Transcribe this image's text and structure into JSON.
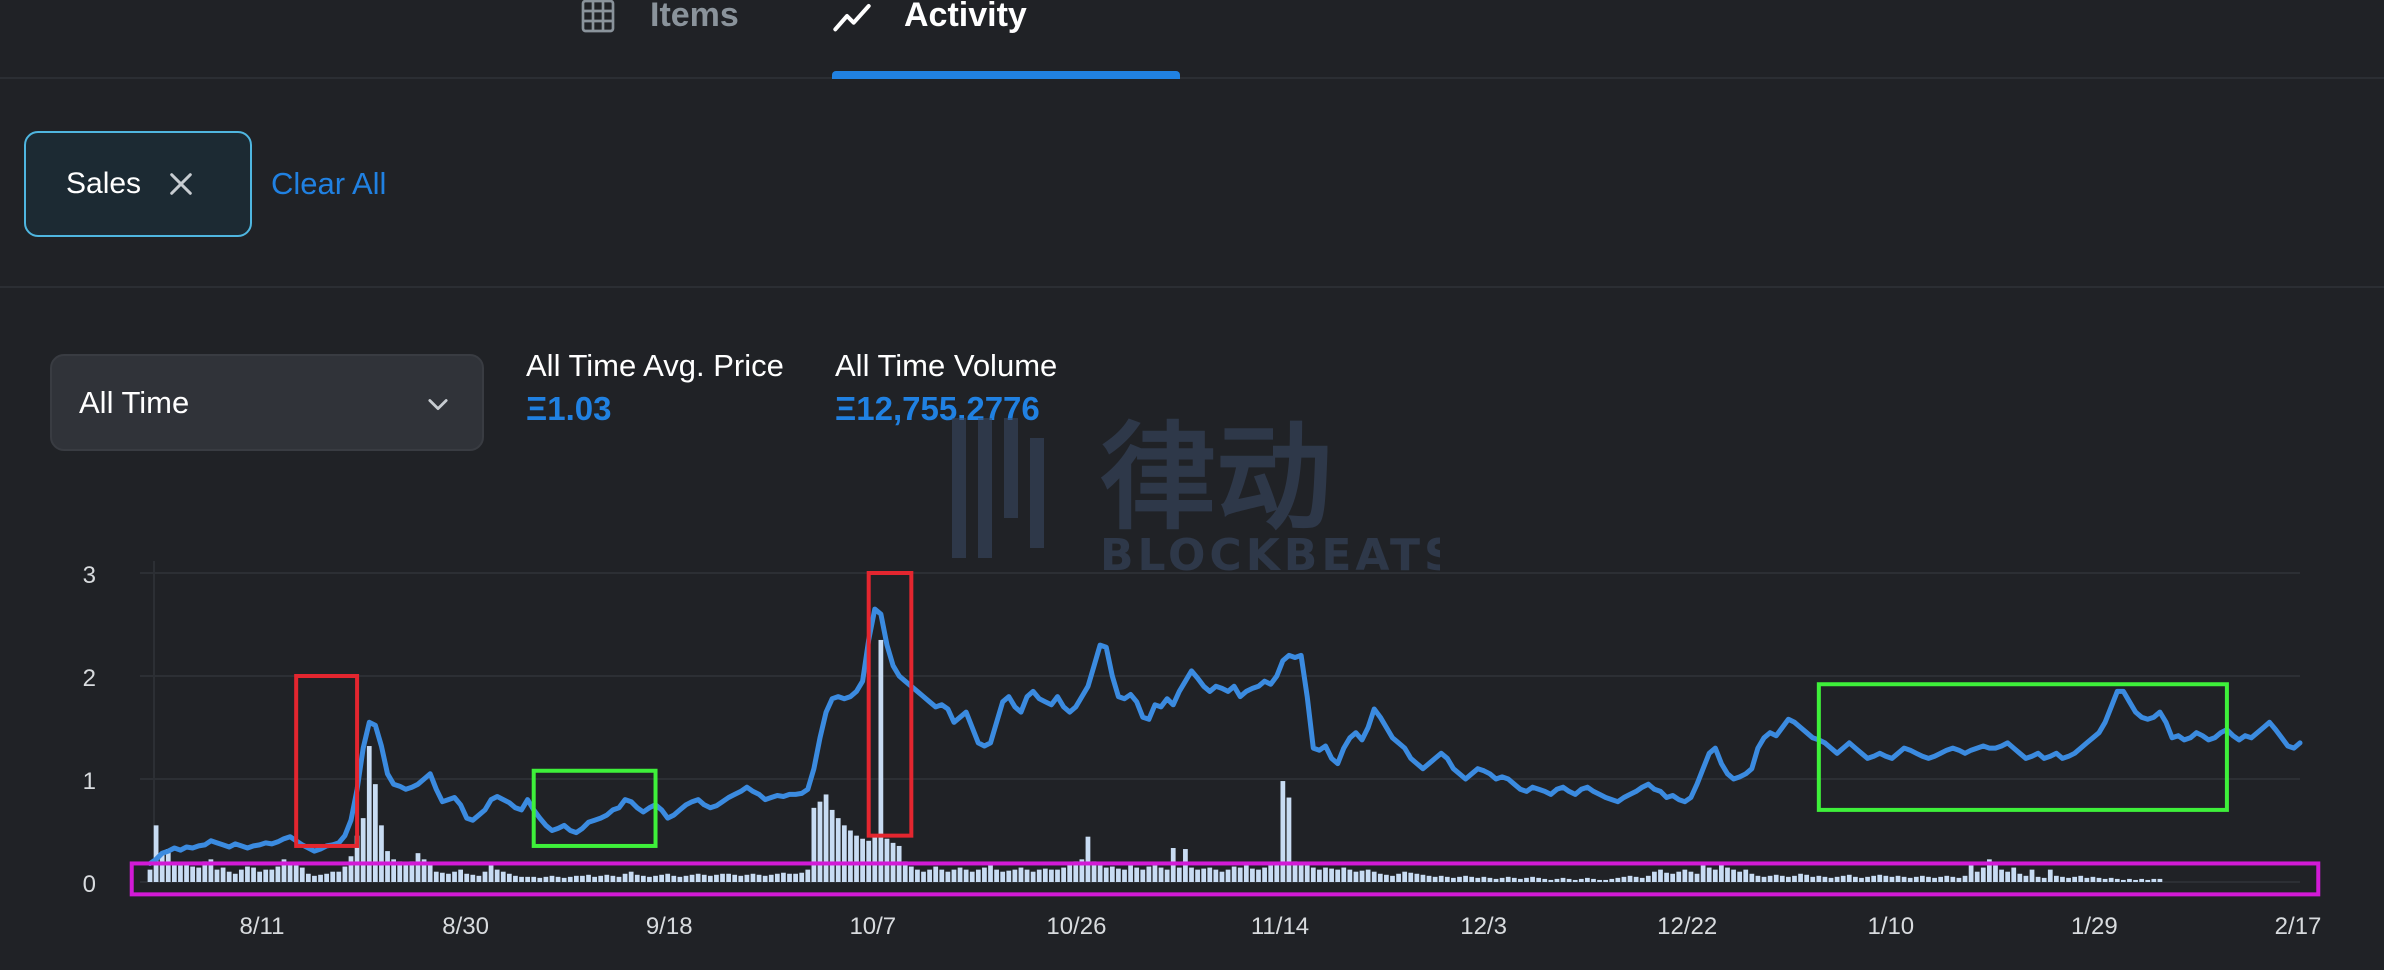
{
  "tabs": [
    {
      "label": "Items",
      "icon": "grid-icon",
      "active": false
    },
    {
      "label": "Activity",
      "icon": "activity-trend-icon",
      "active": true
    }
  ],
  "filters": {
    "chips": [
      {
        "label": "Sales"
      }
    ],
    "clear_all_label": "Clear All"
  },
  "time_range": {
    "selected": "All Time"
  },
  "stats": {
    "avg_price_label": "All Time Avg. Price",
    "avg_price_value": "Ξ1.03",
    "volume_label": "All Time Volume",
    "volume_value": "Ξ12,755.2776"
  },
  "watermark": {
    "text_cn": "律动",
    "text_en": "BLOCKBEATS"
  },
  "colors": {
    "accent": "#2081e2",
    "line": "#3b8be0",
    "bars": "#c8dcf3",
    "annotation_red": "#e3262f",
    "annotation_green": "#3ef03a",
    "annotation_magenta": "#d21ad6"
  },
  "chart_data": {
    "type": "bar",
    "overlay_type": "line",
    "x_ticks": [
      "8/11",
      "8/30",
      "9/18",
      "10/7",
      "10/26",
      "11/14",
      "12/3",
      "12/22",
      "1/10",
      "1/29",
      "2/17"
    ],
    "y_ticks": [
      "0",
      "1",
      "2",
      "3"
    ],
    "ylim": [
      0,
      3
    ],
    "grid": true,
    "series": [
      {
        "kind": "line",
        "values": [
          0.18,
          0.22,
          0.28,
          0.3,
          0.33,
          0.31,
          0.34,
          0.33,
          0.35,
          0.36,
          0.4,
          0.38,
          0.36,
          0.34,
          0.37,
          0.35,
          0.33,
          0.35,
          0.36,
          0.38,
          0.37,
          0.39,
          0.42,
          0.44,
          0.4,
          0.36,
          0.33,
          0.3,
          0.32,
          0.35,
          0.36,
          0.38,
          0.45,
          0.6,
          0.9,
          1.3,
          1.55,
          1.52,
          1.32,
          1.05,
          0.95,
          0.93,
          0.9,
          0.92,
          0.95,
          1.0,
          1.05,
          0.9,
          0.78,
          0.8,
          0.82,
          0.75,
          0.62,
          0.6,
          0.65,
          0.7,
          0.8,
          0.83,
          0.8,
          0.77,
          0.72,
          0.7,
          0.8,
          0.7,
          0.62,
          0.55,
          0.5,
          0.52,
          0.55,
          0.5,
          0.48,
          0.52,
          0.58,
          0.6,
          0.62,
          0.65,
          0.7,
          0.72,
          0.8,
          0.78,
          0.72,
          0.68,
          0.72,
          0.75,
          0.7,
          0.62,
          0.65,
          0.7,
          0.75,
          0.78,
          0.8,
          0.75,
          0.72,
          0.74,
          0.78,
          0.82,
          0.85,
          0.88,
          0.92,
          0.88,
          0.85,
          0.8,
          0.82,
          0.84,
          0.83,
          0.85,
          0.85,
          0.86,
          0.9,
          1.1,
          1.4,
          1.65,
          1.78,
          1.8,
          1.78,
          1.8,
          1.85,
          1.95,
          2.35,
          2.65,
          2.6,
          2.3,
          2.1,
          2.0,
          1.95,
          1.9,
          1.85,
          1.8,
          1.75,
          1.7,
          1.72,
          1.68,
          1.55,
          1.6,
          1.65,
          1.5,
          1.35,
          1.32,
          1.35,
          1.55,
          1.75,
          1.8,
          1.7,
          1.65,
          1.8,
          1.85,
          1.78,
          1.75,
          1.72,
          1.8,
          1.7,
          1.65,
          1.7,
          1.8,
          1.9,
          2.1,
          2.3,
          2.28,
          2.0,
          1.8,
          1.78,
          1.82,
          1.75,
          1.6,
          1.58,
          1.72,
          1.7,
          1.78,
          1.72,
          1.85,
          1.95,
          2.05,
          1.98,
          1.9,
          1.85,
          1.9,
          1.88,
          1.85,
          1.9,
          1.8,
          1.85,
          1.88,
          1.9,
          1.95,
          1.92,
          2.0,
          2.15,
          2.2,
          2.18,
          2.2,
          1.8,
          1.3,
          1.28,
          1.32,
          1.2,
          1.15,
          1.3,
          1.4,
          1.45,
          1.38,
          1.5,
          1.68,
          1.6,
          1.5,
          1.4,
          1.35,
          1.3,
          1.2,
          1.15,
          1.1,
          1.15,
          1.2,
          1.25,
          1.2,
          1.1,
          1.05,
          1.0,
          1.05,
          1.1,
          1.08,
          1.05,
          1.0,
          1.02,
          1.0,
          0.95,
          0.9,
          0.88,
          0.92,
          0.9,
          0.88,
          0.85,
          0.9,
          0.92,
          0.88,
          0.85,
          0.9,
          0.92,
          0.88,
          0.85,
          0.82,
          0.8,
          0.78,
          0.82,
          0.85,
          0.88,
          0.92,
          0.95,
          0.9,
          0.88,
          0.82,
          0.84,
          0.8,
          0.78,
          0.82,
          0.95,
          1.1,
          1.25,
          1.3,
          1.15,
          1.05,
          1.0,
          1.02,
          1.05,
          1.1,
          1.3,
          1.4,
          1.45,
          1.42,
          1.5,
          1.58,
          1.55,
          1.5,
          1.45,
          1.4,
          1.38,
          1.35,
          1.3,
          1.25,
          1.3,
          1.35,
          1.3,
          1.25,
          1.2,
          1.22,
          1.25,
          1.22,
          1.2,
          1.25,
          1.3,
          1.28,
          1.25,
          1.22,
          1.2,
          1.22,
          1.25,
          1.28,
          1.3,
          1.28,
          1.25,
          1.28,
          1.3,
          1.32,
          1.3,
          1.3,
          1.32,
          1.35,
          1.3,
          1.25,
          1.2,
          1.22,
          1.25,
          1.2,
          1.22,
          1.25,
          1.2,
          1.22,
          1.25,
          1.3,
          1.35,
          1.4,
          1.45,
          1.55,
          1.7,
          1.85,
          1.85,
          1.75,
          1.65,
          1.6,
          1.58,
          1.6,
          1.65,
          1.55,
          1.4,
          1.42,
          1.38,
          1.4,
          1.45,
          1.42,
          1.38,
          1.4,
          1.45,
          1.48,
          1.42,
          1.38,
          1.42,
          1.4,
          1.45,
          1.5,
          1.55,
          1.48,
          1.4,
          1.32,
          1.3,
          1.35
        ],
        "color": "#3b8be0"
      },
      {
        "kind": "bar",
        "values": [
          0.12,
          0.55,
          0.28,
          0.32,
          0.18,
          0.16,
          0.17,
          0.15,
          0.14,
          0.2,
          0.22,
          0.12,
          0.14,
          0.1,
          0.08,
          0.12,
          0.15,
          0.14,
          0.1,
          0.12,
          0.12,
          0.15,
          0.22,
          0.18,
          0.16,
          0.14,
          0.08,
          0.06,
          0.07,
          0.08,
          0.1,
          0.1,
          0.15,
          0.25,
          0.45,
          0.62,
          1.32,
          0.95,
          0.55,
          0.3,
          0.22,
          0.2,
          0.18,
          0.2,
          0.28,
          0.22,
          0.18,
          0.1,
          0.09,
          0.08,
          0.1,
          0.12,
          0.08,
          0.07,
          0.06,
          0.1,
          0.16,
          0.12,
          0.1,
          0.08,
          0.06,
          0.05,
          0.05,
          0.05,
          0.04,
          0.05,
          0.06,
          0.05,
          0.04,
          0.05,
          0.06,
          0.06,
          0.07,
          0.05,
          0.06,
          0.07,
          0.06,
          0.05,
          0.08,
          0.1,
          0.07,
          0.06,
          0.05,
          0.06,
          0.07,
          0.08,
          0.06,
          0.05,
          0.06,
          0.07,
          0.08,
          0.07,
          0.06,
          0.07,
          0.08,
          0.08,
          0.07,
          0.06,
          0.07,
          0.08,
          0.07,
          0.06,
          0.07,
          0.08,
          0.09,
          0.08,
          0.08,
          0.09,
          0.12,
          0.72,
          0.78,
          0.85,
          0.7,
          0.62,
          0.55,
          0.5,
          0.45,
          0.42,
          0.4,
          0.45,
          2.35,
          0.42,
          0.38,
          0.35,
          0.2,
          0.15,
          0.12,
          0.1,
          0.12,
          0.15,
          0.12,
          0.1,
          0.12,
          0.14,
          0.12,
          0.1,
          0.12,
          0.14,
          0.16,
          0.12,
          0.1,
          0.11,
          0.12,
          0.14,
          0.12,
          0.1,
          0.12,
          0.13,
          0.12,
          0.12,
          0.14,
          0.18,
          0.2,
          0.22,
          0.44,
          0.2,
          0.16,
          0.14,
          0.15,
          0.13,
          0.12,
          0.16,
          0.14,
          0.12,
          0.15,
          0.16,
          0.14,
          0.12,
          0.33,
          0.14,
          0.32,
          0.14,
          0.12,
          0.13,
          0.14,
          0.12,
          0.1,
          0.12,
          0.15,
          0.14,
          0.16,
          0.13,
          0.12,
          0.14,
          0.16,
          0.18,
          0.98,
          0.82,
          0.2,
          0.18,
          0.16,
          0.14,
          0.12,
          0.14,
          0.13,
          0.12,
          0.14,
          0.12,
          0.1,
          0.11,
          0.12,
          0.1,
          0.08,
          0.07,
          0.06,
          0.08,
          0.1,
          0.09,
          0.08,
          0.07,
          0.06,
          0.05,
          0.06,
          0.05,
          0.04,
          0.05,
          0.06,
          0.05,
          0.04,
          0.05,
          0.04,
          0.03,
          0.04,
          0.05,
          0.04,
          0.03,
          0.04,
          0.05,
          0.04,
          0.03,
          0.02,
          0.03,
          0.04,
          0.03,
          0.02,
          0.03,
          0.04,
          0.03,
          0.02,
          0.02,
          0.03,
          0.04,
          0.05,
          0.06,
          0.05,
          0.04,
          0.06,
          0.1,
          0.12,
          0.09,
          0.08,
          0.1,
          0.12,
          0.1,
          0.08,
          0.16,
          0.14,
          0.12,
          0.18,
          0.14,
          0.12,
          0.1,
          0.12,
          0.08,
          0.06,
          0.05,
          0.06,
          0.07,
          0.06,
          0.05,
          0.06,
          0.08,
          0.07,
          0.05,
          0.06,
          0.05,
          0.04,
          0.05,
          0.06,
          0.07,
          0.05,
          0.04,
          0.05,
          0.06,
          0.07,
          0.06,
          0.05,
          0.06,
          0.05,
          0.04,
          0.05,
          0.06,
          0.05,
          0.04,
          0.05,
          0.06,
          0.05,
          0.04,
          0.06,
          0.16,
          0.1,
          0.14,
          0.22,
          0.16,
          0.12,
          0.1,
          0.14,
          0.08,
          0.06,
          0.12,
          0.05,
          0.04,
          0.12,
          0.06,
          0.05,
          0.04,
          0.05,
          0.06,
          0.04,
          0.05,
          0.04,
          0.03,
          0.04,
          0.03,
          0.02,
          0.03,
          0.02,
          0.03,
          0.02,
          0.03,
          0.03
        ],
        "color": "#c8dcf3"
      }
    ],
    "annotations": [
      {
        "shape": "rect",
        "color": "red",
        "x_range": [
          24,
          34
        ],
        "y_range": [
          0.35,
          2.0
        ]
      },
      {
        "shape": "rect",
        "color": "red",
        "x_range": [
          118,
          125
        ],
        "y_range": [
          0.45,
          3.0
        ]
      },
      {
        "shape": "rect",
        "color": "green",
        "x_range": [
          63,
          83
        ],
        "y_range": [
          0.35,
          1.08
        ]
      },
      {
        "shape": "rect",
        "color": "green",
        "x_range": [
          274,
          341
        ],
        "y_range": [
          0.7,
          1.92
        ]
      },
      {
        "shape": "rect",
        "color": "magenta",
        "x_range": [
          -3,
          356
        ],
        "y_range": [
          -0.12,
          0.18
        ]
      }
    ]
  }
}
